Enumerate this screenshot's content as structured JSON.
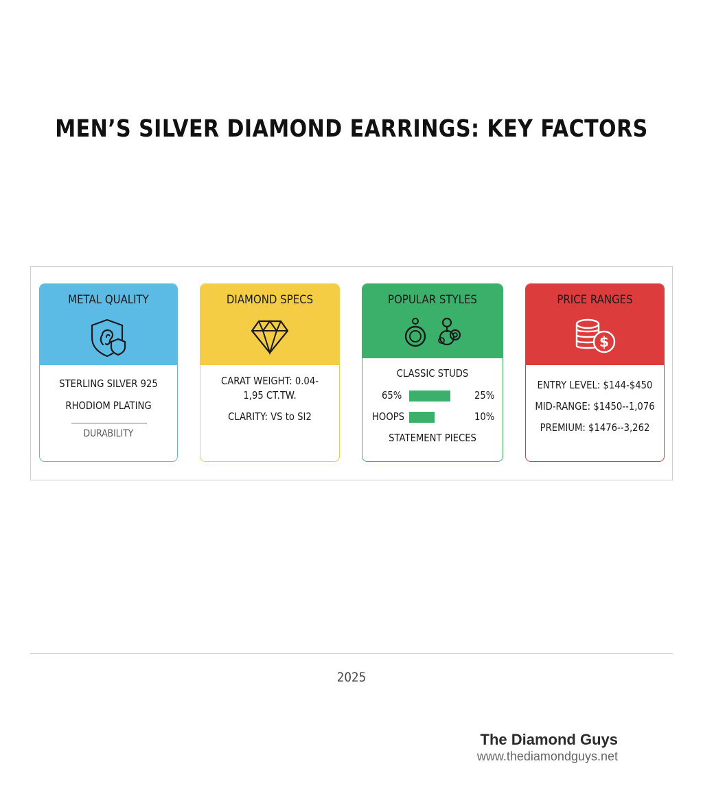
{
  "title": "MEN’S SILVER DIAMOND EARRINGS: KEY FACTORS",
  "colors": {
    "blue": "#5bbbe5",
    "yellow": "#f5cd45",
    "green": "#3bb06a",
    "red": "#dc3c3c"
  },
  "cards": {
    "metal": {
      "title": "METAL QUALITY",
      "icon": "ear-shield-icon",
      "lines": [
        "STERLING SILVER 925",
        "RHODIOM PLATING"
      ],
      "footer": "DURABILITY"
    },
    "diamond": {
      "title": "DIAMOND SPECS",
      "icon": "diamond-icon",
      "lines": [
        "CARAT WEIGHT: 0.04-",
        "1,95 CT.TW.",
        "CLARITY: VS to SI2"
      ]
    },
    "styles": {
      "title": "POPULAR STYLES",
      "icon": "earrings-icon",
      "heading": "CLASSIC STUDS",
      "row1": {
        "left": "65%",
        "right": "25%",
        "share": 0.65
      },
      "row2": {
        "left": "HOOPS",
        "right": "10%",
        "share": 0.4
      },
      "footer": "STATEMENT PIECES"
    },
    "price": {
      "title": "PRICE RANGES",
      "icon": "coins-dollar-icon",
      "lines": [
        "ENTRY LEVEL: $144-$450",
        "MID-RANGE: $1450--1,076",
        "PREMIUM: $1476--3,262"
      ]
    }
  },
  "year": "2025",
  "brand": {
    "name": "The Diamond Guys",
    "url": "www.thediamondguys.net"
  }
}
